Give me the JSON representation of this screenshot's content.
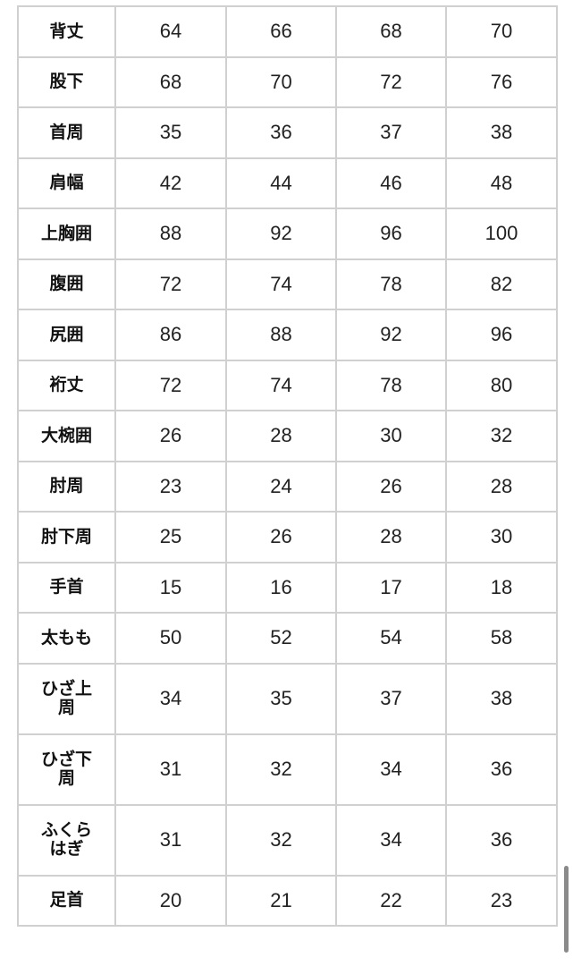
{
  "table": {
    "rows": [
      {
        "label": "背丈",
        "values": [
          "64",
          "66",
          "68",
          "70"
        ]
      },
      {
        "label": "股下",
        "values": [
          "68",
          "70",
          "72",
          "76"
        ]
      },
      {
        "label": "首周",
        "values": [
          "35",
          "36",
          "37",
          "38"
        ]
      },
      {
        "label": "肩幅",
        "values": [
          "42",
          "44",
          "46",
          "48"
        ]
      },
      {
        "label": "上胸囲",
        "values": [
          "88",
          "92",
          "96",
          "100"
        ]
      },
      {
        "label": "腹囲",
        "values": [
          "72",
          "74",
          "78",
          "82"
        ]
      },
      {
        "label": "尻囲",
        "values": [
          "86",
          "88",
          "92",
          "96"
        ]
      },
      {
        "label": "裄丈",
        "values": [
          "72",
          "74",
          "78",
          "80"
        ]
      },
      {
        "label": "大椀囲",
        "values": [
          "26",
          "28",
          "30",
          "32"
        ]
      },
      {
        "label": "肘周",
        "values": [
          "23",
          "24",
          "26",
          "28"
        ]
      },
      {
        "label": "肘下周",
        "values": [
          "25",
          "26",
          "28",
          "30"
        ]
      },
      {
        "label": "手首",
        "values": [
          "15",
          "16",
          "17",
          "18"
        ]
      },
      {
        "label": "太もも",
        "values": [
          "50",
          "52",
          "54",
          "58"
        ]
      },
      {
        "label": "ひざ上周",
        "values": [
          "34",
          "35",
          "37",
          "38"
        ]
      },
      {
        "label": "ひざ下周",
        "values": [
          "31",
          "32",
          "34",
          "36"
        ]
      },
      {
        "label": "ふくらはぎ",
        "values": [
          "31",
          "32",
          "34",
          "36"
        ]
      },
      {
        "label": "足首",
        "values": [
          "20",
          "21",
          "22",
          "23"
        ]
      }
    ]
  },
  "colors": {
    "border": "#d0d0d0",
    "text": "#222222",
    "scrollbar": "#8a8a8a"
  }
}
